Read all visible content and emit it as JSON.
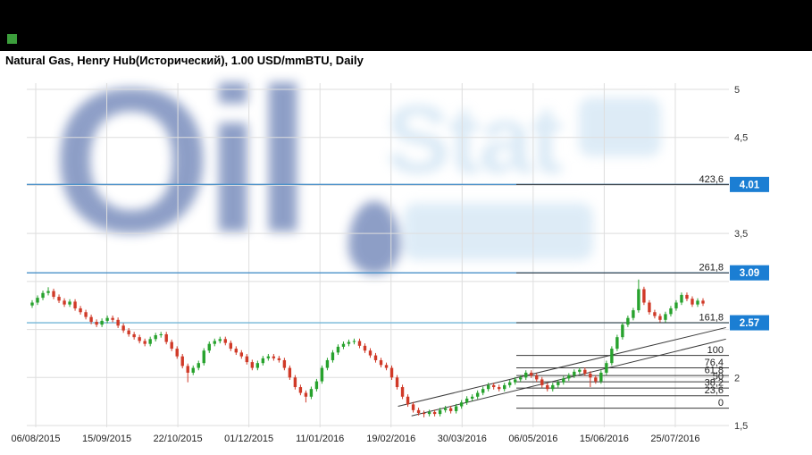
{
  "header": {
    "title": "Natural Gas, Henry Hub(Исторический), 1.00 USD/mmBTU, Daily",
    "chip_style": "background:#3c9e3c"
  },
  "watermark": {
    "word1": "Oil",
    "word2": "Stat"
  },
  "chart_data": {
    "type": "candlestick",
    "title": "Natural Gas, Henry Hub(Исторический), 1.00 USD/mmBTU, Daily",
    "instrument": "Natural Gas, Henry Hub",
    "unit": "USD/mmBTU",
    "timeframe": "Daily",
    "xlabel": "",
    "ylabel": "",
    "ylim": [
      1.5,
      5
    ],
    "grid": true,
    "x_ticks": [
      "06/08/2015",
      "15/09/2015",
      "22/10/2015",
      "01/12/2015",
      "11/01/2016",
      "19/02/2016",
      "30/03/2016",
      "06/05/2016",
      "15/06/2016",
      "25/07/2016"
    ],
    "grid_prices": [
      5,
      4.5,
      4,
      3.5,
      3,
      2.5,
      2,
      1.5
    ],
    "y_ticks": [
      {
        "price": 5,
        "label": "5"
      },
      {
        "price": 4.5,
        "label": "4,5"
      },
      {
        "price": 3.5,
        "label": "3,5"
      },
      {
        "price": 2,
        "label": "2"
      },
      {
        "price": 1.5,
        "label": "1,5"
      }
    ],
    "price_levels": [
      {
        "price": 4.01,
        "label": "4.01",
        "color": "#4a90c8"
      },
      {
        "price": 3.09,
        "label": "3.09",
        "color": "#4a90c8"
      },
      {
        "price": 2.57,
        "label": "2.57",
        "color": "#74b6d8"
      }
    ],
    "fib_levels": [
      {
        "label": "423,6",
        "price": 4.01
      },
      {
        "label": "261,8",
        "price": 3.09
      },
      {
        "label": "161,8",
        "price": 2.57
      },
      {
        "label": "100",
        "price": 2.23
      },
      {
        "label": "76,4",
        "price": 2.1
      },
      {
        "label": "61,8",
        "price": 2.02
      },
      {
        "label": "50",
        "price": 1.955
      },
      {
        "label": "38,2",
        "price": 1.89
      },
      {
        "label": "23,6",
        "price": 1.81
      },
      {
        "label": "0",
        "price": 1.68
      }
    ],
    "trendlines": [
      [
        0.545,
        1.7,
        1.03,
        2.52
      ],
      [
        0.565,
        1.6,
        1.03,
        2.4
      ]
    ],
    "open_first": 2.75,
    "closes": [
      2.78,
      2.83,
      2.88,
      2.9,
      2.84,
      2.8,
      2.76,
      2.79,
      2.72,
      2.68,
      2.63,
      2.58,
      2.55,
      2.59,
      2.62,
      2.6,
      2.54,
      2.49,
      2.45,
      2.42,
      2.38,
      2.35,
      2.4,
      2.44,
      2.45,
      2.37,
      2.3,
      2.22,
      2.12,
      2.05,
      2.1,
      2.15,
      2.28,
      2.35,
      2.38,
      2.4,
      2.36,
      2.3,
      2.26,
      2.22,
      2.16,
      2.1,
      2.15,
      2.2,
      2.22,
      2.2,
      2.18,
      2.1,
      2.0,
      1.9,
      1.84,
      1.8,
      1.88,
      1.96,
      2.1,
      2.18,
      2.26,
      2.32,
      2.35,
      2.37,
      2.38,
      2.33,
      2.28,
      2.23,
      2.18,
      2.13,
      2.1,
      2.0,
      1.9,
      1.8,
      1.72,
      1.66,
      1.63,
      1.62,
      1.64,
      1.62,
      1.66,
      1.68,
      1.65,
      1.7,
      1.74,
      1.78,
      1.8,
      1.84,
      1.88,
      1.92,
      1.9,
      1.88,
      1.92,
      1.95,
      1.98,
      2.0,
      2.05,
      2.02,
      1.98,
      1.92,
      1.88,
      1.92,
      1.95,
      1.99,
      2.02,
      2.06,
      2.08,
      2.04,
      2.0,
      1.96,
      2.05,
      2.15,
      2.3,
      2.42,
      2.55,
      2.62,
      2.7,
      2.92,
      2.78,
      2.68,
      2.64,
      2.6,
      2.66,
      2.72,
      2.78,
      2.86,
      2.82,
      2.76,
      2.8,
      2.77
    ],
    "wicks": {
      "3": {
        "h": 2.94
      },
      "29": {
        "l": 1.95
      },
      "51": {
        "l": 1.74
      },
      "73": {
        "l": 1.585
      },
      "104": {
        "l": 1.9
      },
      "113": {
        "h": 3.02
      }
    },
    "colors": {
      "up": "#27a22d",
      "down": "#d03a28",
      "grid": "#dedede",
      "fib": "#3a3a3a",
      "trend": "#3a3a3a",
      "badge": "#1b7ed3",
      "axis_text": "#333333",
      "date_text": "#222222"
    }
  }
}
